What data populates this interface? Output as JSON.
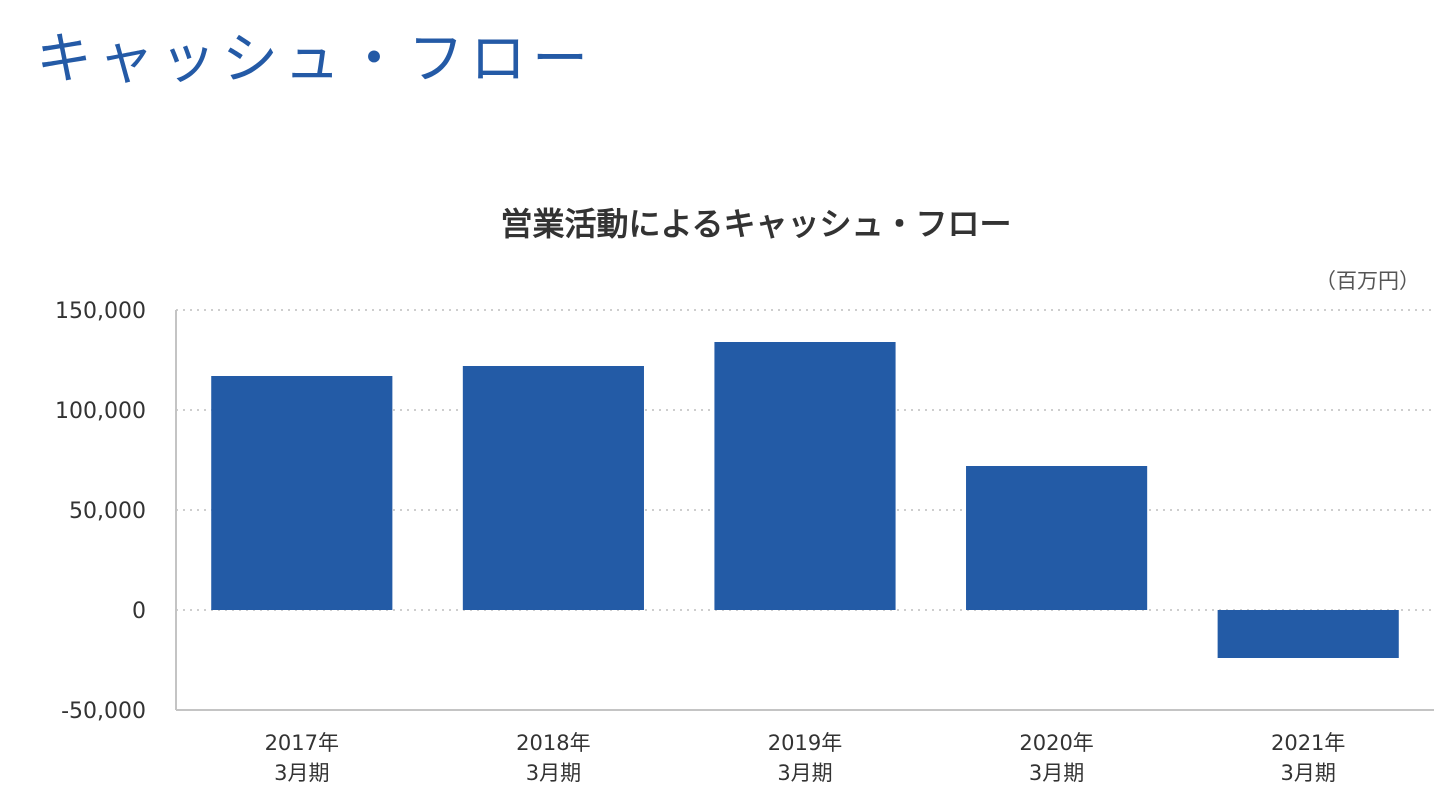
{
  "page": {
    "title": "キャッシュ・フロー"
  },
  "chart_data": {
    "type": "bar",
    "title": "営業活動によるキャッシュ・フロー",
    "unit": "（百万円）",
    "categories": [
      [
        "2017年",
        "3月期"
      ],
      [
        "2018年",
        "3月期"
      ],
      [
        "2019年",
        "3月期"
      ],
      [
        "2020年",
        "3月期"
      ],
      [
        "2021年",
        "3月期"
      ]
    ],
    "values": [
      117000,
      122000,
      134000,
      72000,
      -24000
    ],
    "ylim": [
      -50000,
      150000
    ],
    "yticks": [
      150000,
      100000,
      50000,
      0,
      -50000
    ],
    "ytick_labels": [
      "150,000",
      "100,000",
      "50,000",
      "0",
      "-50,000"
    ],
    "grid": true,
    "bar_color": "#235ba6"
  }
}
